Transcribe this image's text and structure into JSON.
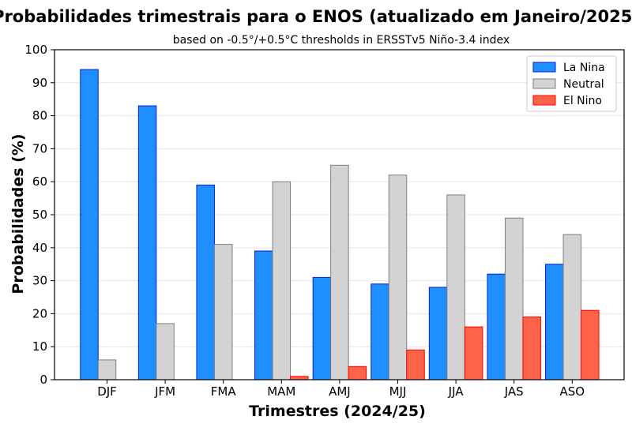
{
  "chart_data": {
    "type": "bar",
    "title": "Probabilidades trimestrais para o ENOS (atualizado em Janeiro/2025)",
    "subtitle": "based on -0.5°/+0.5°C thresholds in ERSSTv5 Niño-3.4 index",
    "xlabel": "Trimestres (2024/25)",
    "ylabel": "Probabilidades (%)",
    "ylim": [
      0,
      100
    ],
    "yticks": [
      0,
      10,
      20,
      30,
      40,
      50,
      60,
      70,
      80,
      90,
      100
    ],
    "grid": true,
    "legend_position": "top-right",
    "categories": [
      "DJF",
      "JFM",
      "FMA",
      "MAM",
      "AMJ",
      "MJJ",
      "JJA",
      "JAS",
      "ASO"
    ],
    "series": [
      {
        "name": "La Nina",
        "color": "#1f8fff",
        "edge": "#0a1fd0",
        "values": [
          94,
          83,
          59,
          39,
          31,
          29,
          28,
          32,
          35
        ]
      },
      {
        "name": "Neutral",
        "color": "#d3d3d3",
        "edge": "#808080",
        "values": [
          6,
          17,
          41,
          60,
          65,
          62,
          56,
          49,
          44
        ]
      },
      {
        "name": "El Nino",
        "color": "#ff6347",
        "edge": "#ff0000",
        "values": [
          0,
          0,
          0,
          1,
          4,
          9,
          16,
          19,
          21
        ]
      }
    ]
  }
}
